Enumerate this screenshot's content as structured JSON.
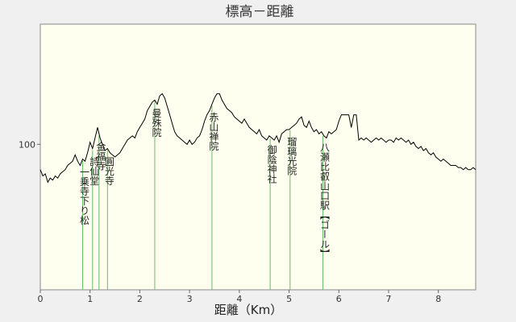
{
  "chart_data": {
    "type": "line",
    "title": "標高－距離",
    "xlabel": "距離（Km）",
    "ylabel": "",
    "xlim": [
      0,
      8.75
    ],
    "ylim": [
      31,
      157
    ],
    "xticks": [
      0,
      1,
      2,
      3,
      4,
      5,
      6,
      7,
      8
    ],
    "yticks": [
      100
    ],
    "grid": false,
    "colors": {
      "plot_bg": "#fffff0",
      "line": "#000000",
      "marker": "#66bb66",
      "frame": "#888888"
    },
    "profile": {
      "x": [
        0.0,
        0.05,
        0.1,
        0.15,
        0.2,
        0.25,
        0.3,
        0.35,
        0.4,
        0.45,
        0.5,
        0.55,
        0.6,
        0.65,
        0.7,
        0.75,
        0.8,
        0.85,
        0.9,
        0.95,
        1.0,
        1.05,
        1.1,
        1.15,
        1.2,
        1.25,
        1.3,
        1.35,
        1.4,
        1.45,
        1.5,
        1.55,
        1.6,
        1.65,
        1.7,
        1.75,
        1.8,
        1.85,
        1.9,
        1.95,
        2.0,
        2.05,
        2.1,
        2.15,
        2.2,
        2.25,
        2.3,
        2.35,
        2.4,
        2.45,
        2.5,
        2.55,
        2.6,
        2.65,
        2.7,
        2.75,
        2.8,
        2.85,
        2.9,
        2.95,
        3.0,
        3.05,
        3.1,
        3.15,
        3.2,
        3.25,
        3.3,
        3.35,
        3.4,
        3.45,
        3.5,
        3.55,
        3.6,
        3.65,
        3.7,
        3.75,
        3.8,
        3.85,
        3.9,
        3.95,
        4.0,
        4.05,
        4.1,
        4.15,
        4.2,
        4.25,
        4.3,
        4.35,
        4.4,
        4.45,
        4.5,
        4.55,
        4.6,
        4.65,
        4.7,
        4.75,
        4.8,
        4.85,
        4.9,
        4.95,
        5.0,
        5.05,
        5.1,
        5.15,
        5.2,
        5.25,
        5.3,
        5.35,
        5.4,
        5.45,
        5.5,
        5.55,
        5.6,
        5.65,
        5.7,
        5.75,
        5.8,
        5.85,
        5.9,
        5.95,
        6.0,
        6.05,
        6.1,
        6.15,
        6.2,
        6.25,
        6.3,
        6.35,
        6.4,
        6.45,
        6.5,
        6.55,
        6.6,
        6.65,
        6.7,
        6.75,
        6.8,
        6.85,
        6.9,
        6.95,
        7.0,
        7.05,
        7.1,
        7.15,
        7.2,
        7.25,
        7.3,
        7.35,
        7.4,
        7.45,
        7.5,
        7.55,
        7.6,
        7.65,
        7.7,
        7.75,
        7.8,
        7.85,
        7.9,
        7.95,
        8.0,
        8.05,
        8.1,
        8.15,
        8.2,
        8.25,
        8.3,
        8.35,
        8.4,
        8.45,
        8.5,
        8.55,
        8.6,
        8.65,
        8.7,
        8.75
      ],
      "y": [
        88,
        85,
        86,
        82,
        84,
        83,
        85,
        84,
        86,
        87,
        88,
        90,
        91,
        92,
        95,
        92,
        90,
        93,
        92,
        96,
        101,
        98,
        103,
        108,
        103,
        100,
        97,
        98,
        96,
        95,
        94,
        95,
        96,
        98,
        100,
        102,
        103,
        104,
        103,
        106,
        108,
        110,
        112,
        116,
        118,
        120,
        121,
        119,
        123,
        124,
        122,
        118,
        114,
        110,
        106,
        104,
        103,
        102,
        101,
        100,
        102,
        100,
        101,
        103,
        104,
        107,
        111,
        114,
        116,
        119,
        122,
        124,
        124,
        121,
        119,
        117,
        116,
        115,
        113,
        112,
        111,
        110,
        112,
        110,
        108,
        107,
        106,
        105,
        107,
        104,
        103,
        102,
        104,
        103,
        102,
        104,
        101,
        105,
        106,
        107,
        107,
        108,
        109,
        110,
        112,
        113,
        109,
        108,
        111,
        108,
        106,
        107,
        105,
        106,
        104,
        103,
        106,
        105,
        106,
        107,
        111,
        114,
        114,
        114,
        114,
        108,
        114,
        114,
        102,
        103,
        102,
        103,
        102,
        101,
        102,
        103,
        102,
        103,
        102,
        101,
        102,
        102,
        101,
        103,
        102,
        103,
        102,
        101,
        102,
        100,
        101,
        99,
        98,
        99,
        97,
        98,
        96,
        95,
        96,
        94,
        93,
        92,
        93,
        92,
        91,
        90,
        90,
        90,
        89,
        89,
        88,
        89,
        88,
        88,
        89,
        88
      ]
    },
    "markers": [
      {
        "x": 0.85,
        "label": "一乗寺下り松"
      },
      {
        "x": 1.05,
        "label": "詩仙堂"
      },
      {
        "x": 1.18,
        "label": "金福寺"
      },
      {
        "x": 1.35,
        "label": "圓光寺"
      },
      {
        "x": 2.3,
        "label": "曼殊院"
      },
      {
        "x": 3.45,
        "label": "赤山禅院"
      },
      {
        "x": 4.62,
        "label": "御陰神社"
      },
      {
        "x": 5.02,
        "label": "瑠璃光院"
      },
      {
        "x": 5.68,
        "label": "八瀬比叡山口駅【ゴール】"
      }
    ]
  }
}
